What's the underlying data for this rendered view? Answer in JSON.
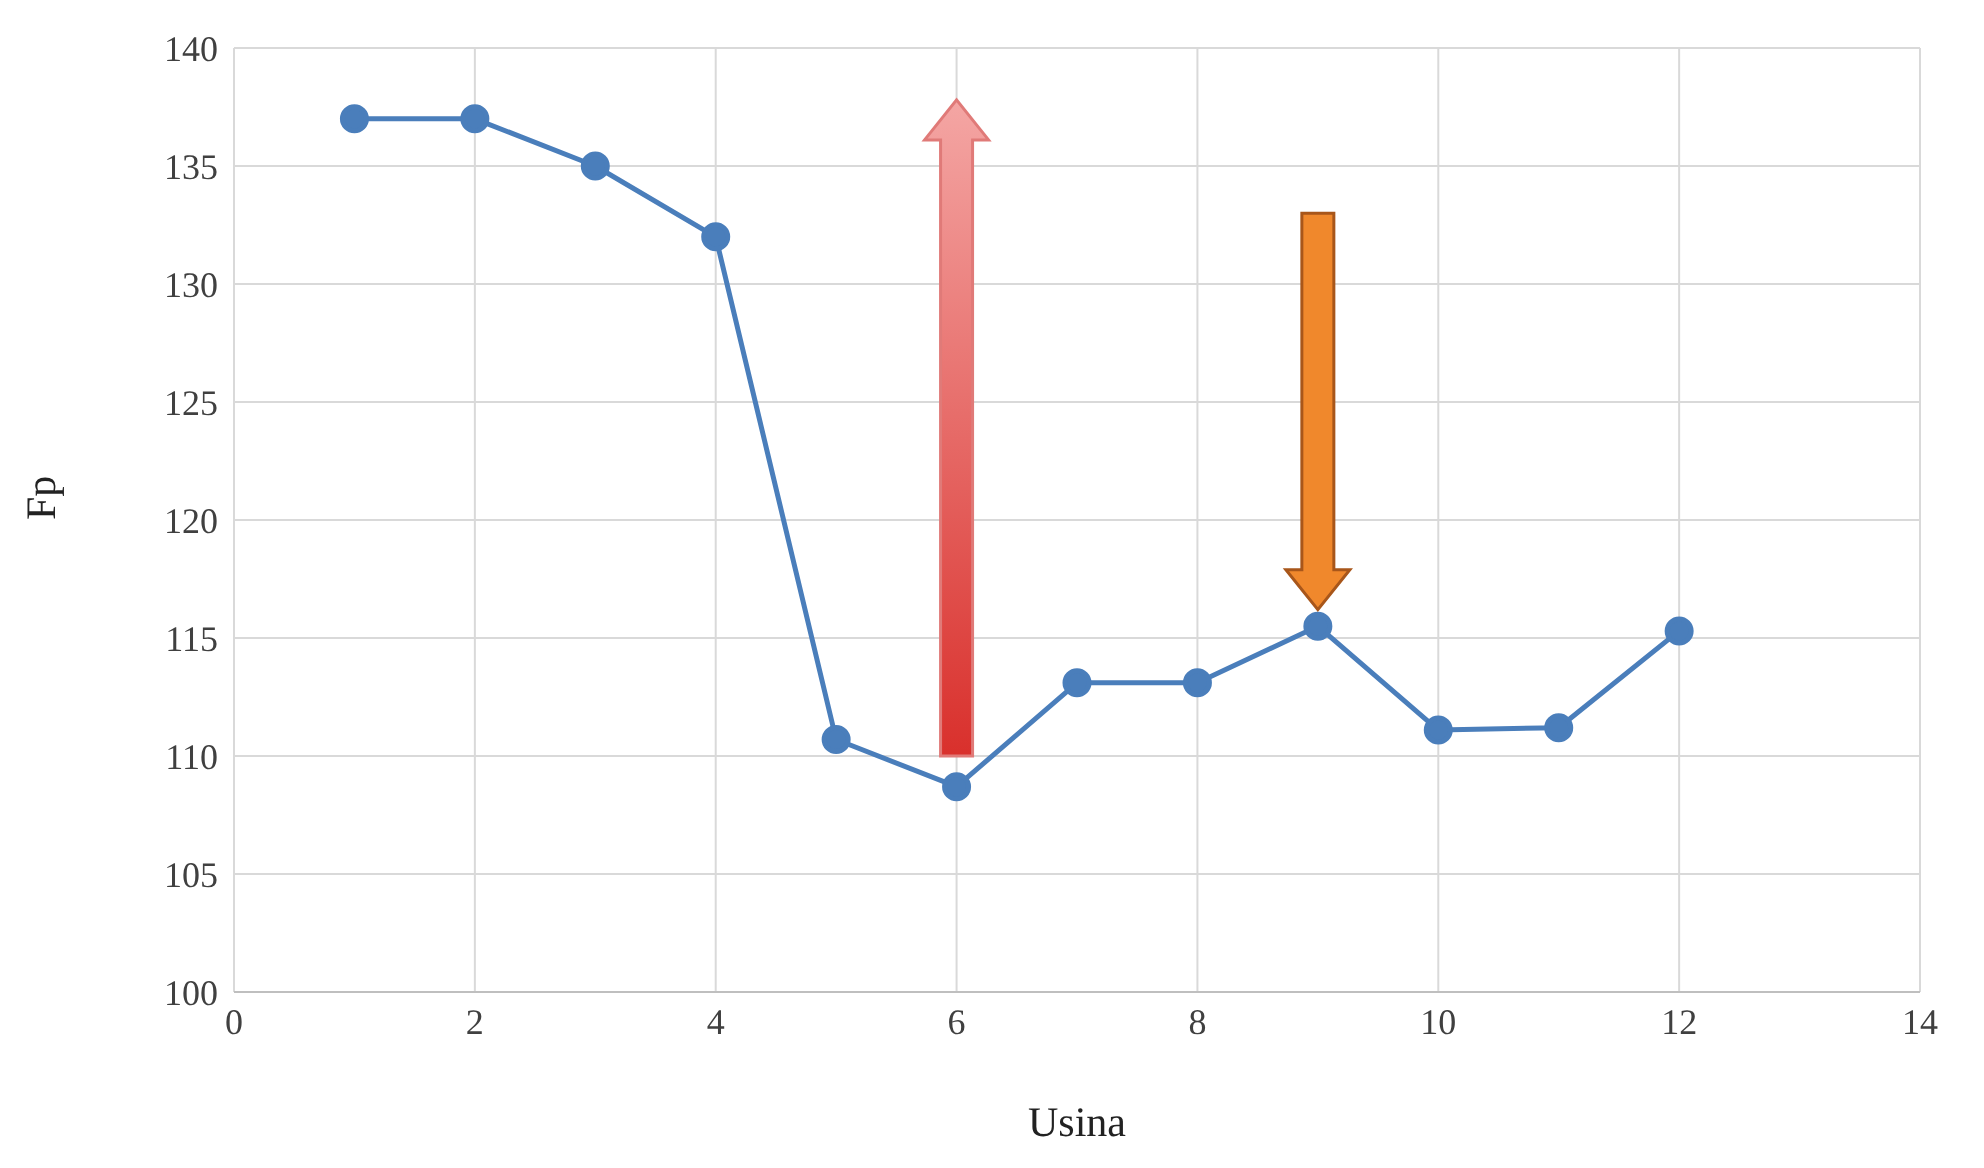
{
  "chart_data": {
    "type": "line",
    "xlabel": "Usina",
    "ylabel": "Fp",
    "x": [
      1,
      2,
      3,
      4,
      5,
      6,
      7,
      8,
      9,
      10,
      11,
      12
    ],
    "series": [
      {
        "color": "#4a7ebb",
        "values": [
          137,
          137,
          135,
          132,
          110.7,
          108.7,
          113.1,
          113.1,
          115.5,
          111.1,
          111.2,
          115.3
        ]
      }
    ],
    "xlim": [
      0,
      14
    ],
    "xticks": [
      0,
      2,
      4,
      6,
      8,
      10,
      12,
      14
    ],
    "ylim": [
      100,
      140
    ],
    "yticks": [
      100,
      105,
      110,
      115,
      120,
      125,
      130,
      135,
      140
    ],
    "grid": true,
    "marker": "circle",
    "line_style": "solid",
    "legend": false
  }
}
